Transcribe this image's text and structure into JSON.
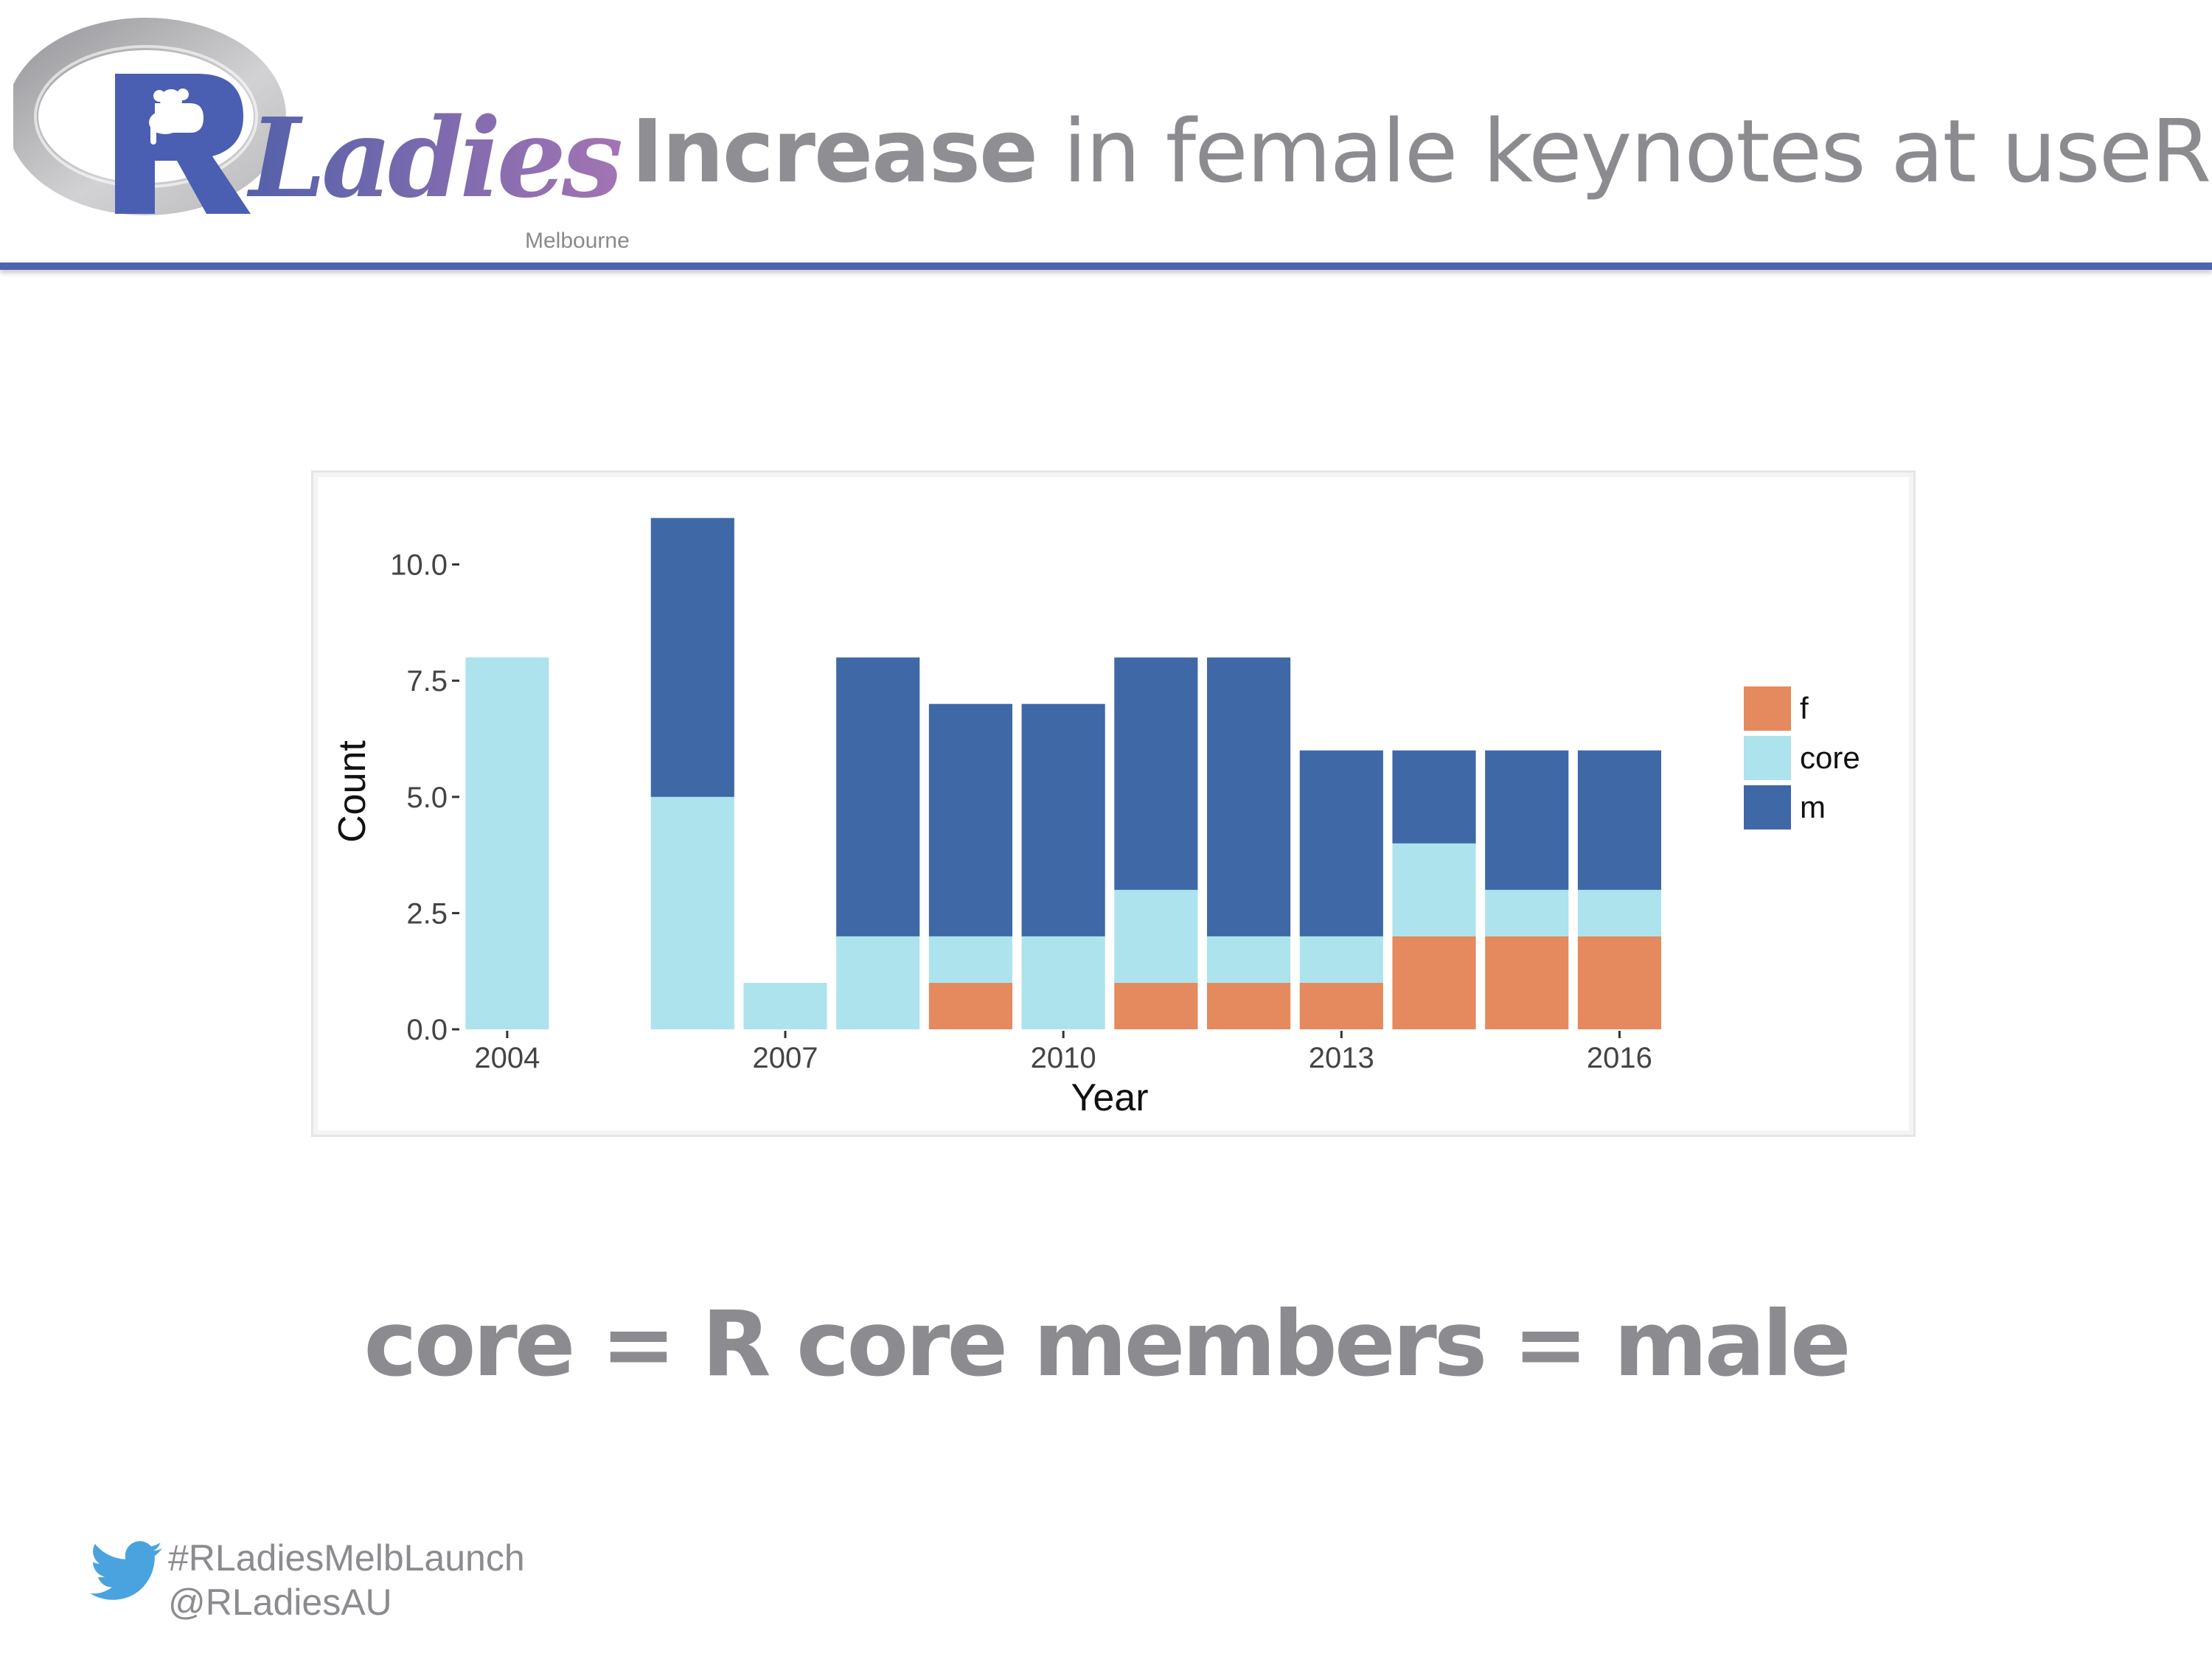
{
  "header": {
    "logo": {
      "brand": "RLadies",
      "subtitle": "Melbourne",
      "icon": "r-ladies-logo"
    },
    "title_strong": "Increase",
    "title_rest": " in female keynotes at useR!"
  },
  "caption": "core = R core members = male",
  "footer": {
    "icon": "twitter-bird-icon",
    "hashtag": "#RLadiesMelbLaunch",
    "handle": "@RLadiesAU"
  },
  "colors": {
    "accent": "#4d64b0",
    "f": "#e5895f",
    "core": "#ade3ec",
    "m": "#3f68a6"
  },
  "chart_data": {
    "type": "bar",
    "stacked": true,
    "title": "",
    "xlabel": "Year",
    "ylabel": "Count",
    "ylim": [
      0,
      11.5
    ],
    "xlim": [
      2003.5,
      2017.5
    ],
    "x_ticks": [
      2004,
      2007,
      2010,
      2013,
      2016
    ],
    "y_ticks": [
      0,
      2.5,
      5,
      7.5,
      10
    ],
    "y_tick_labels": [
      "0.0",
      "2.5",
      "5.0",
      "7.5",
      "10.0"
    ],
    "legend_position": "right",
    "years": [
      2004,
      2006,
      2007,
      2008,
      2009,
      2010,
      2011,
      2012,
      2013,
      2014,
      2015,
      2016
    ],
    "series": [
      {
        "name": "f",
        "color": "#e5895f",
        "values": [
          0,
          0,
          0,
          0,
          1,
          0,
          1,
          1,
          1,
          2,
          2,
          2
        ]
      },
      {
        "name": "core",
        "color": "#ade3ec",
        "values": [
          8,
          5,
          1,
          2,
          1,
          2,
          2,
          1,
          1,
          2,
          1,
          1
        ]
      },
      {
        "name": "m",
        "color": "#3f68a6",
        "values": [
          0,
          6,
          0,
          6,
          5,
          5,
          5,
          6,
          4,
          2,
          3,
          3
        ]
      }
    ]
  }
}
